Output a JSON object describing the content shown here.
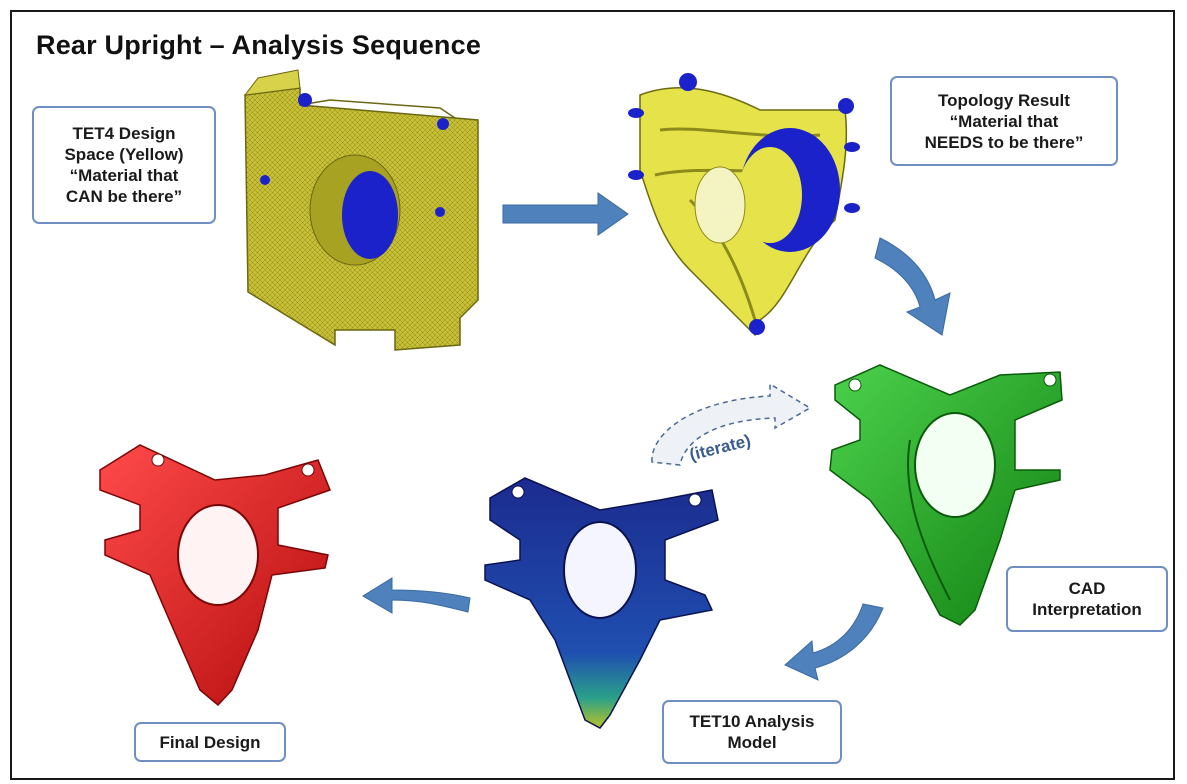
{
  "title": "Rear Upright – Analysis Sequence",
  "labels": {
    "tet4": [
      "TET4 Design",
      "Space (Yellow)",
      "“Material that",
      "CAN be there”"
    ],
    "topology": [
      "Topology Result",
      "“Material that",
      "NEEDS to be there”"
    ],
    "cad": [
      "CAD",
      "Interpretation"
    ],
    "tet10": [
      "TET10 Analysis",
      "Model"
    ],
    "final": [
      "Final Design"
    ]
  },
  "iterate_label": "(iterate)",
  "colors": {
    "arrow": "#4f81bd",
    "yellow_mesh": "#c9c238",
    "yellow_topo": "#e6e34a",
    "blue_hub": "#1b22c9",
    "green": "#1fa21f",
    "dark_blue_fem": "#1c2b8f",
    "red": "#e01616",
    "label_border": "#6f8fc4"
  }
}
